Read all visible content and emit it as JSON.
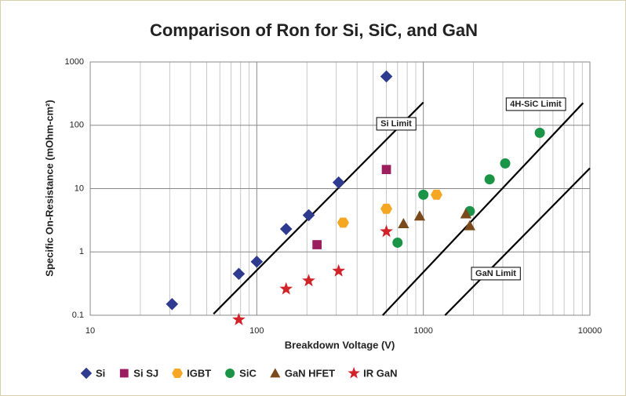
{
  "chart_data": {
    "type": "scatter",
    "title": "Comparison of Ron for Si, SiC, and GaN",
    "x_label": "Breakdown Voltage (V)",
    "y_label": "Specific On-Resistance (mOhm-cm²)",
    "log_x": true,
    "log_y": true,
    "grid": true,
    "xlim": [
      10,
      10000
    ],
    "ylim": [
      0.1,
      1000
    ],
    "xticks": [
      10,
      100,
      1000,
      10000
    ],
    "yticks": [
      0.1,
      1,
      10,
      100,
      1000
    ],
    "xminor_ticks": [
      20,
      30,
      40,
      50,
      60,
      70,
      80,
      90,
      200,
      300,
      400,
      500,
      600,
      700,
      800,
      900,
      2000,
      3000,
      4000,
      5000,
      6000,
      7000,
      8000,
      9000
    ],
    "legend": "bottom",
    "series": [
      {
        "name": "Si",
        "color": "#2e3b8f",
        "marker": "diamond",
        "x": [
          31,
          78,
          100,
          150,
          205,
          310,
          600
        ],
        "values": [
          0.15,
          0.45,
          0.7,
          2.3,
          3.8,
          12.5,
          590
        ]
      },
      {
        "name": "Si SJ",
        "color": "#9b1f5e",
        "marker": "square",
        "x": [
          230,
          600
        ],
        "values": [
          1.3,
          20
        ]
      },
      {
        "name": "IGBT",
        "color": "#f5a623",
        "marker": "hexagon",
        "x": [
          330,
          600,
          1200
        ],
        "values": [
          2.9,
          4.8,
          8
        ]
      },
      {
        "name": "SiC",
        "color": "#1b9447",
        "marker": "circle",
        "x": [
          700,
          1000,
          1900,
          2500,
          3100,
          5000
        ],
        "values": [
          1.4,
          8,
          4.4,
          14,
          25,
          76
        ]
      },
      {
        "name": "GaN HFET",
        "color": "#7b4a1c",
        "marker": "triangle",
        "x": [
          760,
          950,
          1800,
          1900
        ],
        "values": [
          2.8,
          3.7,
          4,
          2.6
        ]
      },
      {
        "name": "IR GaN",
        "color": "#d2232a",
        "marker": "star",
        "x": [
          78,
          150,
          205,
          310,
          600
        ],
        "values": [
          0.085,
          0.26,
          0.35,
          0.5,
          2.1
        ]
      }
    ],
    "limit_lines": [
      {
        "name": "Si Limit",
        "x": [
          55,
          1000
        ],
        "values": [
          0.105,
          230
        ]
      },
      {
        "name": "4H-SiC Limit",
        "x": [
          570,
          9100
        ],
        "values": [
          0.1,
          225
        ]
      },
      {
        "name": "GaN Limit",
        "x": [
          1350,
          10000
        ],
        "values": [
          0.1,
          21
        ]
      }
    ]
  }
}
